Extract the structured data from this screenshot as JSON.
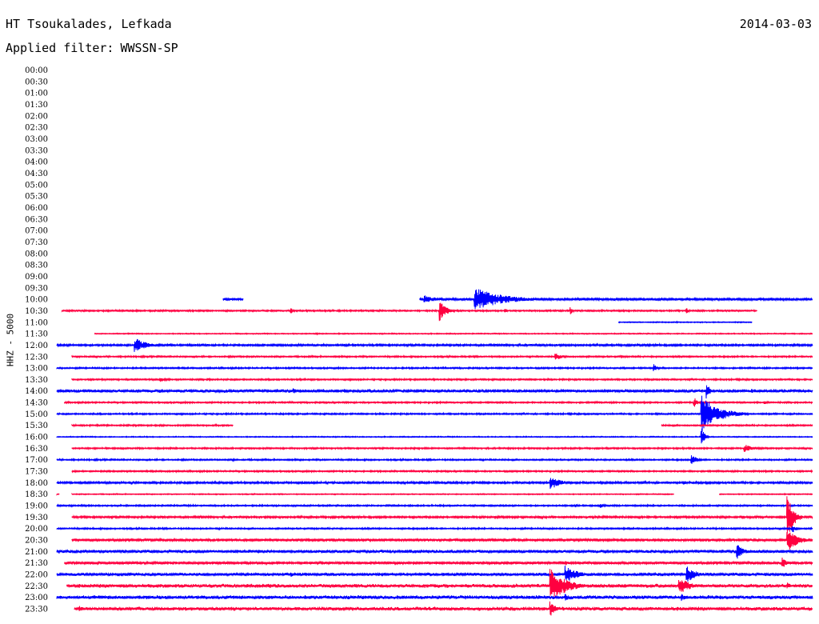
{
  "header": {
    "station": "HT Tsoukalades, Lefkada",
    "filter_label": "Applied filter:",
    "filter_value": "WWSSN-SP",
    "date": "2014-03-03"
  },
  "colors": {
    "trace_odd": "#ff0040",
    "trace_even": "#0000ff",
    "text": "#000000",
    "background": "#ffffff"
  },
  "chart_data": {
    "type": "line",
    "title": "HT Tsoukalades, Lefkada",
    "subtitle": "Applied filter: WWSSN-SP",
    "date": "2014-03-03",
    "ylabel": "HHZ - 5000",
    "xlabel": "",
    "row_labels": [
      "00:00",
      "00:30",
      "01:00",
      "01:30",
      "02:00",
      "02:30",
      "03:00",
      "03:30",
      "04:00",
      "04:30",
      "05:00",
      "05:30",
      "06:00",
      "06:30",
      "07:00",
      "07:30",
      "08:00",
      "08:30",
      "09:00",
      "09:30",
      "10:00",
      "10:30",
      "11:00",
      "11:30",
      "12:00",
      "12:30",
      "13:00",
      "13:30",
      "14:00",
      "14:30",
      "15:00",
      "15:30",
      "16:00",
      "16:30",
      "17:00",
      "17:30",
      "18:00",
      "18:30",
      "19:00",
      "19:30",
      "20:00",
      "20:30",
      "21:00",
      "21:30",
      "22:00",
      "22:30",
      "23:00",
      "23:30"
    ],
    "row_minutes": 30,
    "row_colors": [
      "blue",
      "red"
    ],
    "traces": [
      {
        "label": "10:00",
        "color": "blue",
        "segments": [
          [
            6.6,
            7.4
          ],
          [
            14.4,
            30.0
          ]
        ],
        "noise": 0.25,
        "events": [
          {
            "t": 7.0,
            "amp": 0.3,
            "dur": 0.4
          },
          {
            "t": 14.6,
            "amp": 0.7,
            "dur": 1.2
          },
          {
            "t": 16.6,
            "amp": 2.0,
            "dur": 3.0
          }
        ]
      },
      {
        "label": "10:30",
        "color": "red",
        "segments": [
          [
            0.2,
            27.8
          ]
        ],
        "noise": 0.15,
        "events": [
          {
            "t": 9.3,
            "amp": 0.5,
            "dur": 0.2
          },
          {
            "t": 15.2,
            "amp": 2.0,
            "dur": 0.6
          },
          {
            "t": 17.8,
            "amp": 0.4,
            "dur": 0.2
          },
          {
            "t": 20.4,
            "amp": 0.7,
            "dur": 0.2
          },
          {
            "t": 25.0,
            "amp": 0.5,
            "dur": 0.2
          }
        ]
      },
      {
        "label": "11:00",
        "color": "blue",
        "segments": [
          [
            22.3,
            27.6
          ]
        ],
        "noise": 0.1,
        "events": []
      },
      {
        "label": "11:30",
        "color": "red",
        "segments": [
          [
            1.5,
            30.0
          ]
        ],
        "noise": 0.1,
        "events": [
          {
            "t": 10.3,
            "amp": 0.2,
            "dur": 0.2
          }
        ]
      },
      {
        "label": "12:00",
        "color": "blue",
        "segments": [
          [
            0.0,
            30.0
          ]
        ],
        "noise": 0.2,
        "events": [
          {
            "t": 3.1,
            "amp": 1.3,
            "dur": 1.2
          },
          {
            "t": 23.8,
            "amp": 0.2,
            "dur": 0.3
          }
        ]
      },
      {
        "label": "12:30",
        "color": "red",
        "segments": [
          [
            0.6,
            30.0
          ]
        ],
        "noise": 0.15,
        "events": [
          {
            "t": 19.8,
            "amp": 0.6,
            "dur": 0.8
          },
          {
            "t": 22.4,
            "amp": 0.2,
            "dur": 0.2
          }
        ]
      },
      {
        "label": "13:00",
        "color": "blue",
        "segments": [
          [
            0.0,
            30.0
          ]
        ],
        "noise": 0.15,
        "events": [
          {
            "t": 23.7,
            "amp": 0.7,
            "dur": 0.3
          },
          {
            "t": 26.4,
            "amp": 0.2,
            "dur": 0.4
          }
        ]
      },
      {
        "label": "13:30",
        "color": "red",
        "segments": [
          [
            0.6,
            30.0
          ]
        ],
        "noise": 0.15,
        "events": [
          {
            "t": 4.1,
            "amp": 0.4,
            "dur": 0.8
          },
          {
            "t": 6.0,
            "amp": 0.2,
            "dur": 0.6
          }
        ]
      },
      {
        "label": "14:00",
        "color": "blue",
        "segments": [
          [
            0.0,
            30.0
          ]
        ],
        "noise": 0.3,
        "events": [
          {
            "t": 9.4,
            "amp": 0.5,
            "dur": 0.5
          },
          {
            "t": 10.6,
            "amp": 0.4,
            "dur": 0.4
          },
          {
            "t": 11.4,
            "amp": 0.4,
            "dur": 0.4
          },
          {
            "t": 13.8,
            "amp": 0.2,
            "dur": 0.3
          },
          {
            "t": 25.8,
            "amp": 1.4,
            "dur": 0.3
          },
          {
            "t": 27.6,
            "amp": 0.4,
            "dur": 0.3
          }
        ]
      },
      {
        "label": "14:30",
        "color": "red",
        "segments": [
          [
            0.3,
            30.0
          ]
        ],
        "noise": 0.15,
        "events": [
          {
            "t": 25.3,
            "amp": 1.0,
            "dur": 0.3
          },
          {
            "t": 28.1,
            "amp": 0.3,
            "dur": 0.4
          }
        ]
      },
      {
        "label": "15:00",
        "color": "blue",
        "segments": [
          [
            0.0,
            30.0
          ]
        ],
        "noise": 0.15,
        "events": [
          {
            "t": 25.6,
            "amp": 3.2,
            "dur": 1.8
          },
          {
            "t": 28.5,
            "amp": 0.2,
            "dur": 0.3
          }
        ]
      },
      {
        "label": "15:30",
        "color": "red",
        "segments": [
          [
            0.6,
            7.0
          ],
          [
            24.0,
            30.0
          ]
        ],
        "noise": 0.15,
        "events": [
          {
            "t": 2.0,
            "amp": 0.2,
            "dur": 0.3
          },
          {
            "t": 5.2,
            "amp": 0.15,
            "dur": 0.3
          }
        ]
      },
      {
        "label": "16:00",
        "color": "blue",
        "segments": [
          [
            0.0,
            30.0
          ]
        ],
        "noise": 0.1,
        "events": [
          {
            "t": 25.6,
            "amp": 1.5,
            "dur": 0.3
          }
        ]
      },
      {
        "label": "16:30",
        "color": "red",
        "segments": [
          [
            0.6,
            30.0
          ]
        ],
        "noise": 0.15,
        "events": [
          {
            "t": 27.3,
            "amp": 0.7,
            "dur": 0.9
          }
        ]
      },
      {
        "label": "17:00",
        "color": "blue",
        "segments": [
          [
            0.0,
            30.0
          ]
        ],
        "noise": 0.15,
        "events": [
          {
            "t": 7.0,
            "amp": 0.2,
            "dur": 0.3
          },
          {
            "t": 25.2,
            "amp": 0.9,
            "dur": 0.6
          }
        ]
      },
      {
        "label": "17:30",
        "color": "red",
        "segments": [
          [
            0.6,
            30.0
          ]
        ],
        "noise": 0.15,
        "events": [
          {
            "t": 2.0,
            "amp": 0.2,
            "dur": 0.3
          }
        ]
      },
      {
        "label": "18:00",
        "color": "blue",
        "segments": [
          [
            0.0,
            30.0
          ]
        ],
        "noise": 0.2,
        "events": [
          {
            "t": 3.0,
            "amp": 0.3,
            "dur": 0.6
          },
          {
            "t": 14.5,
            "amp": 0.4,
            "dur": 0.3
          },
          {
            "t": 19.6,
            "amp": 1.2,
            "dur": 1.0
          },
          {
            "t": 24.9,
            "amp": 0.3,
            "dur": 0.4
          }
        ]
      },
      {
        "label": "18:30",
        "color": "red",
        "segments": [
          [
            0.0,
            0.1
          ],
          [
            0.6,
            24.5
          ],
          [
            26.3,
            30.0
          ]
        ],
        "noise": 0.1,
        "events": []
      },
      {
        "label": "19:00",
        "color": "blue",
        "segments": [
          [
            0.0,
            30.0
          ]
        ],
        "noise": 0.15,
        "events": [
          {
            "t": 20.6,
            "amp": 0.3,
            "dur": 0.3
          },
          {
            "t": 21.6,
            "amp": 0.4,
            "dur": 0.4
          }
        ]
      },
      {
        "label": "19:30",
        "color": "red",
        "segments": [
          [
            0.6,
            30.0
          ]
        ],
        "noise": 0.2,
        "events": [
          {
            "t": 29.0,
            "amp": 4.0,
            "dur": 0.6
          }
        ]
      },
      {
        "label": "20:00",
        "color": "blue",
        "segments": [
          [
            0.0,
            30.0
          ]
        ],
        "noise": 0.15,
        "events": [
          {
            "t": 29.2,
            "amp": 0.8,
            "dur": 0.4
          }
        ]
      },
      {
        "label": "20:30",
        "color": "red",
        "segments": [
          [
            0.6,
            30.0
          ]
        ],
        "noise": 0.25,
        "events": [
          {
            "t": 24.3,
            "amp": 0.3,
            "dur": 0.3
          },
          {
            "t": 29.0,
            "amp": 2.2,
            "dur": 1.0
          }
        ]
      },
      {
        "label": "21:00",
        "color": "blue",
        "segments": [
          [
            0.0,
            30.0
          ]
        ],
        "noise": 0.3,
        "events": [
          {
            "t": 0.1,
            "amp": 0.4,
            "dur": 0.3
          },
          {
            "t": 20.0,
            "amp": 0.3,
            "dur": 0.3
          },
          {
            "t": 27.0,
            "amp": 1.5,
            "dur": 0.6
          }
        ]
      },
      {
        "label": "21:30",
        "color": "red",
        "segments": [
          [
            0.3,
            30.0
          ]
        ],
        "noise": 0.25,
        "events": [
          {
            "t": 20.2,
            "amp": 0.4,
            "dur": 0.4
          },
          {
            "t": 28.8,
            "amp": 1.0,
            "dur": 0.5
          }
        ]
      },
      {
        "label": "22:00",
        "color": "blue",
        "segments": [
          [
            0.0,
            30.0
          ]
        ],
        "noise": 0.3,
        "events": [
          {
            "t": 9.3,
            "amp": 0.4,
            "dur": 0.4
          },
          {
            "t": 20.2,
            "amp": 1.5,
            "dur": 1.2
          },
          {
            "t": 25.0,
            "amp": 1.4,
            "dur": 1.0
          }
        ]
      },
      {
        "label": "22:30",
        "color": "red",
        "segments": [
          [
            0.4,
            30.0
          ]
        ],
        "noise": 0.35,
        "events": [
          {
            "t": 19.6,
            "amp": 3.0,
            "dur": 1.6
          },
          {
            "t": 24.7,
            "amp": 1.5,
            "dur": 1.2
          },
          {
            "t": 29.0,
            "amp": 0.6,
            "dur": 0.4
          }
        ]
      },
      {
        "label": "23:00",
        "color": "blue",
        "segments": [
          [
            0.0,
            30.0
          ]
        ],
        "noise": 0.35,
        "events": [
          {
            "t": 20.2,
            "amp": 0.6,
            "dur": 0.5
          },
          {
            "t": 24.8,
            "amp": 0.6,
            "dur": 0.5
          }
        ]
      },
      {
        "label": "23:30",
        "color": "red",
        "segments": [
          [
            0.7,
            30.0
          ]
        ],
        "noise": 0.35,
        "events": [
          {
            "t": 0.9,
            "amp": 0.6,
            "dur": 0.4
          },
          {
            "t": 19.6,
            "amp": 1.4,
            "dur": 0.5
          }
        ]
      }
    ]
  }
}
